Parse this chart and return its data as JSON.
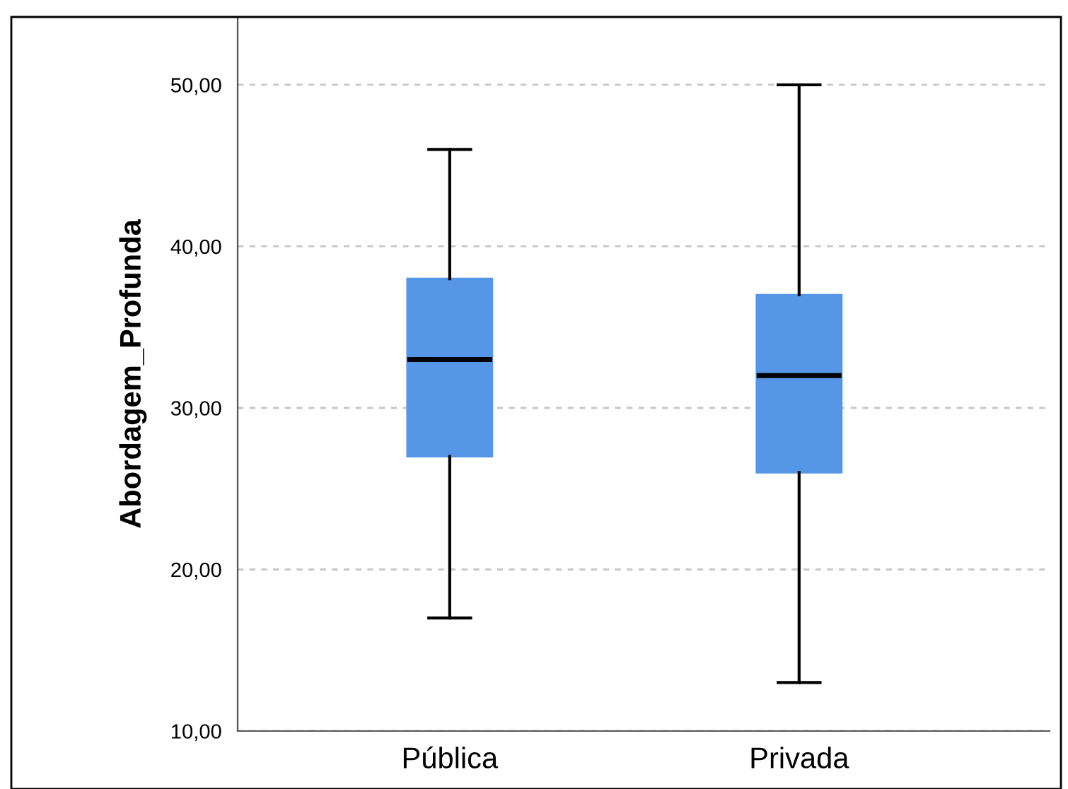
{
  "chart_data": {
    "type": "box",
    "ylabel": "Abordagem_Profunda",
    "categories": [
      "Pública",
      "Privada"
    ],
    "boxes": [
      {
        "low": 17,
        "q1": 27,
        "median": 33,
        "q3": 38,
        "high": 46
      },
      {
        "low": 13,
        "q1": 26,
        "median": 32,
        "q3": 37,
        "high": 50
      }
    ],
    "color": "#5596e6",
    "ylim": [
      10,
      54.2
    ],
    "yticks": [
      {
        "value": 10,
        "label": "10,00"
      },
      {
        "value": 20,
        "label": "20,00"
      },
      {
        "value": 30,
        "label": "30,00"
      },
      {
        "value": 40,
        "label": "40,00"
      },
      {
        "value": 50,
        "label": "50,00"
      }
    ],
    "grid": "y"
  }
}
